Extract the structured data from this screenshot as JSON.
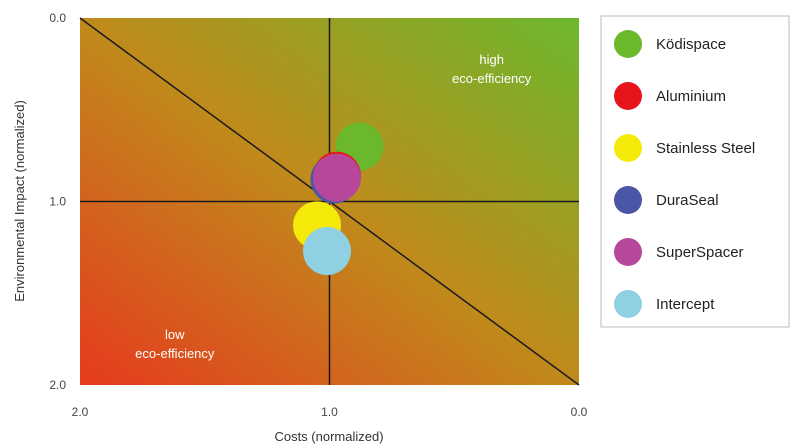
{
  "chart_data": {
    "type": "scatter",
    "title": "",
    "xlabel": "Costs (normalized)",
    "ylabel": "Environmental Impact (normalized)",
    "xlim": [
      2.0,
      0.0
    ],
    "ylim": [
      0.0,
      2.0
    ],
    "x_reversed": true,
    "y_reversed": true,
    "x_ticks": [
      "2.0",
      "1.0",
      "0.0"
    ],
    "y_ticks": [
      "0.0",
      "1.0",
      "2.0"
    ],
    "grid": false,
    "reference_lines": {
      "vertical_x": 1.0,
      "horizontal_y": 1.0,
      "diagonal": "from (2.0, 0.0) to (0.0, 2.0)"
    },
    "background_gradient": {
      "high_eff_color": "#6cb82c",
      "low_eff_color": "#e63a1e",
      "mid_color": "#c08a1c"
    },
    "annotations": [
      {
        "id": "high",
        "lines": [
          "high",
          "eco-efficiency"
        ],
        "x": 0.35,
        "y": 0.25
      },
      {
        "id": "low",
        "lines": [
          "low",
          "eco-efficiency"
        ],
        "x": 1.62,
        "y": 1.75
      }
    ],
    "legend_position": "right",
    "series": [
      {
        "name": "Ködispace",
        "x": 0.88,
        "y": 0.7,
        "color": "#6cb82c"
      },
      {
        "name": "Aluminium",
        "x": 0.97,
        "y": 0.86,
        "color": "#e8141b"
      },
      {
        "name": "Stainless Steel",
        "x": 1.05,
        "y": 1.13,
        "color": "#f5e90a"
      },
      {
        "name": "DuraSeal",
        "x": 0.98,
        "y": 0.88,
        "color": "#4a56a6"
      },
      {
        "name": "SuperSpacer",
        "x": 0.97,
        "y": 0.87,
        "color": "#b6479a"
      },
      {
        "name": "Intercept",
        "x": 1.01,
        "y": 1.27,
        "color": "#8fd0e3"
      }
    ]
  }
}
